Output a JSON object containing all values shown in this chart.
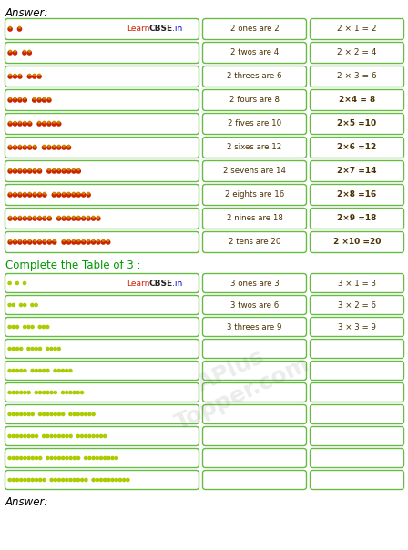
{
  "title_answer": "Answer:",
  "title_complete": "Complete the Table of 3 :",
  "title_answer2": "Answer:",
  "table2_rows": [
    {
      "text1": "2 ones are 2",
      "text2": "2 × 1 = 2",
      "bold1": false,
      "bold2": false
    },
    {
      "text1": "2 twos are 4",
      "text2": "2 × 2 = 4",
      "bold1": false,
      "bold2": false
    },
    {
      "text1": "2 threes are 6",
      "text2": "2 × 3 = 6",
      "bold1": false,
      "bold2": false
    },
    {
      "text1": "2 fours are 8",
      "text2": "2×4 = 8",
      "bold1": false,
      "bold2": true
    },
    {
      "text1": "2 fives are 10",
      "text2": "2×5 =10",
      "bold1": false,
      "bold2": true
    },
    {
      "text1": "2 sixes are 12",
      "text2": "2×6 =12",
      "bold1": false,
      "bold2": true
    },
    {
      "text1": "2 sevens are 14",
      "text2": "2×7 =14",
      "bold1": false,
      "bold2": true
    },
    {
      "text1": "2 eights are 16",
      "text2": "2×8 =16",
      "bold1": false,
      "bold2": true
    },
    {
      "text1": "2 nines are 18",
      "text2": "2×9 =18",
      "bold1": false,
      "bold2": true
    },
    {
      "text1": "2 tens are 20",
      "text2": "2 ×10 =20",
      "bold1": false,
      "bold2": true
    }
  ],
  "table3_rows_filled": [
    {
      "text1": "3 ones are 3",
      "text2": "3 × 1 = 3"
    },
    {
      "text1": "3 twos are 6",
      "text2": "3 × 2 = 6"
    },
    {
      "text1": "3 threes are 9",
      "text2": "3 × 3 = 9"
    }
  ],
  "table3_empty_rows": 7,
  "apple_color": "#cc2200",
  "apple_stem_color": "#cc8800",
  "dot_color": "#aacc00",
  "border_color": "#66bb44",
  "bg_color": "#ffffff",
  "text_color": "#4a3000",
  "learn_color": "#cc2200",
  "cbse_color": "#222222",
  "in_color": "#0000cc",
  "complete_color": "#009900",
  "answer_color": "#000000"
}
